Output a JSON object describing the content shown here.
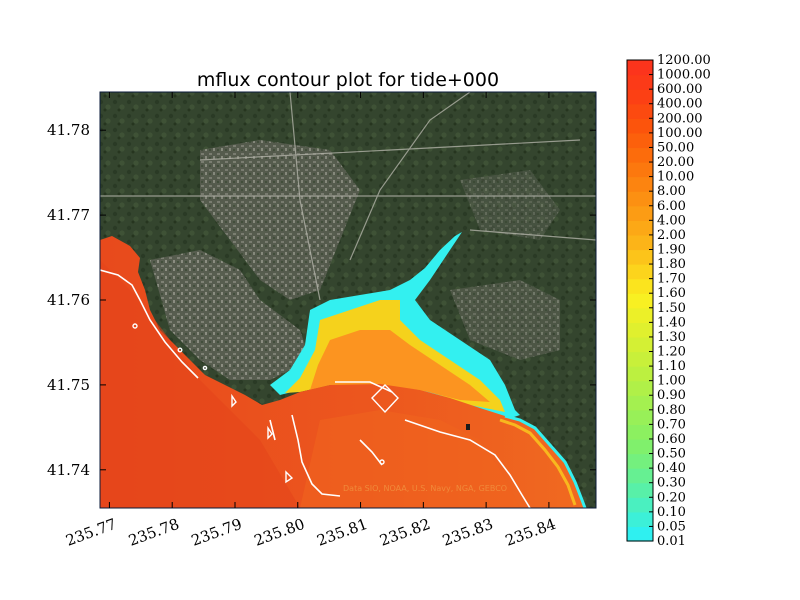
{
  "chart_data": {
    "type": "heatmap",
    "title": "mflux contour plot for tide+000",
    "xlabel": "",
    "ylabel": "",
    "xlim": [
      235.7685,
      235.8475
    ],
    "ylim": [
      41.7355,
      41.7845
    ],
    "x_ticks": [
      "235.77",
      "235.78",
      "235.79",
      "235.80",
      "235.81",
      "235.82",
      "235.83",
      "235.84"
    ],
    "x_tick_values": [
      235.77,
      235.78,
      235.79,
      235.8,
      235.81,
      235.82,
      235.83,
      235.84
    ],
    "y_ticks": [
      "41.74",
      "41.75",
      "41.76",
      "41.77",
      "41.78"
    ],
    "y_tick_values": [
      41.74,
      41.75,
      41.76,
      41.77,
      41.78
    ],
    "colorbar": {
      "levels": [
        "0.01",
        "0.05",
        "0.10",
        "0.20",
        "0.30",
        "0.40",
        "0.50",
        "0.60",
        "0.70",
        "0.80",
        "0.90",
        "1.00",
        "1.10",
        "1.20",
        "1.30",
        "1.40",
        "1.50",
        "1.60",
        "1.70",
        "1.80",
        "1.90",
        "2.00",
        "4.00",
        "6.00",
        "8.00",
        "10.00",
        "20.00",
        "50.00",
        "100.00",
        "200.00",
        "400.00",
        "600.00",
        "1000.00",
        "1200.00"
      ],
      "colors": [
        "#2ff0f0",
        "#3cf0d8",
        "#4af0c0",
        "#58f0a8",
        "#66f092",
        "#74f07e",
        "#80f06c",
        "#8cf060",
        "#98f058",
        "#a4f050",
        "#b0f048",
        "#bcf040",
        "#c8f03a",
        "#d4f034",
        "#e0f02e",
        "#ecf028",
        "#f8f022",
        "#fbe41e",
        "#fcd41c",
        "#fcc41a",
        "#fcb418",
        "#fca816",
        "#fc9c14",
        "#fc9012",
        "#fc8410",
        "#fc780e",
        "#fc6c0c",
        "#fc600c",
        "#fc540c",
        "#fc4a10",
        "#fc4014",
        "#fc3a18",
        "#fc341c"
      ]
    },
    "attribution": "Data SIO, NOAA, U.S. Navy, NGA, GEBCO"
  },
  "colors": {
    "land_base": "#3a4a32",
    "land_dark": "#24331f",
    "urban": "#7a7a72",
    "water_high": "#e8461a",
    "coastline": "#ffffff",
    "frame": "#0a1a3a"
  }
}
